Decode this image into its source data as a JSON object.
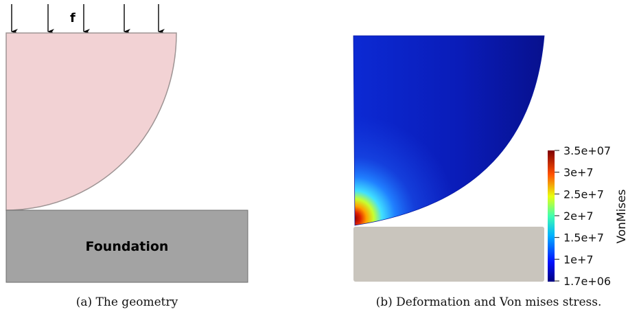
{
  "panel_a": {
    "force_label": "f",
    "foundation_label": "Foundation",
    "caption": "(a) The geometry",
    "colors": {
      "body": "#f2d2d4",
      "body_stroke": "#9e9494",
      "foundation": "#a3a3a3"
    }
  },
  "panel_b": {
    "caption": "(b) Deformation and Von mises stress.",
    "colorbar": {
      "title": "VonMises",
      "ticks": [
        "3.5e+07",
        "3e+7",
        "2.5e+7",
        "2e+7",
        "1.5e+7",
        "1e+7",
        "1.7e+06"
      ],
      "min": 1700000,
      "max": 35000000
    },
    "colors": {
      "foundation": "#c9c5bd",
      "low": "#0a0d8c",
      "high": "#8b0000"
    }
  }
}
